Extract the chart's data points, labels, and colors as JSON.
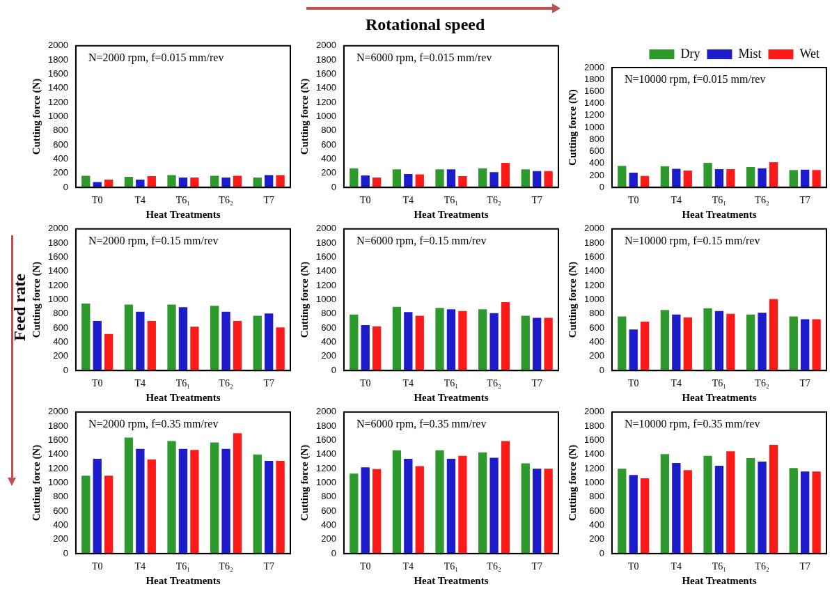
{
  "chart_data": [
    {
      "type": "bar",
      "title": "N=2000 rpm, f=0.015 mm/rev",
      "xlabel": "Heat Treatments",
      "ylabel": "Cutting force (N)",
      "categories": [
        "T0",
        "T4",
        "T6₁",
        "T6₂",
        "T7"
      ],
      "ylim": [
        0,
        2000
      ],
      "yticks": [
        0,
        200,
        400,
        600,
        800,
        1000,
        1200,
        1400,
        1600,
        1800,
        2000
      ],
      "grid": false,
      "series": [
        {
          "color": "#2e9a2e",
          "values": [
            165,
            150,
            175,
            165,
            140
          ]
        },
        {
          "color": "#1c1ccc",
          "values": [
            75,
            110,
            140,
            140,
            175
          ]
        },
        {
          "color": "#ff1a1a",
          "values": [
            110,
            160,
            140,
            165,
            175
          ]
        }
      ]
    },
    {
      "type": "bar",
      "title": "N=6000 rpm, f=0.015 mm/rev",
      "xlabel": "Heat Treatments",
      "ylabel": "Cutting force (N)",
      "categories": [
        "T0",
        "T4",
        "T6₁",
        "T6₂",
        "T7"
      ],
      "ylim": [
        0,
        2000
      ],
      "yticks": [
        0,
        200,
        400,
        600,
        800,
        1000,
        1200,
        1400,
        1600,
        1800,
        2000
      ],
      "grid": false,
      "annotations": [
        "Rotational speed"
      ],
      "series": [
        {
          "color": "#2e9a2e",
          "values": [
            270,
            255,
            255,
            270,
            255
          ]
        },
        {
          "color": "#1c1ccc",
          "values": [
            170,
            190,
            255,
            215,
            230
          ]
        },
        {
          "color": "#ff1a1a",
          "values": [
            140,
            185,
            160,
            345,
            230
          ]
        }
      ]
    },
    {
      "type": "bar",
      "title": "N=10000 rpm, f=0.015 mm/rev",
      "xlabel": "Heat Treatments",
      "ylabel": "Cutting force (N)",
      "categories": [
        "T0",
        "T4",
        "T6₁",
        "T6₂",
        "T7"
      ],
      "ylim": [
        0,
        2000
      ],
      "yticks": [
        0,
        200,
        400,
        600,
        800,
        1000,
        1200,
        1400,
        1600,
        1800,
        2000
      ],
      "grid": false,
      "legend": "top right",
      "series": [
        {
          "name": "Dry",
          "color": "#2e9a2e",
          "values": [
            360,
            355,
            410,
            340,
            290
          ]
        },
        {
          "name": "Mist",
          "color": "#1c1ccc",
          "values": [
            245,
            310,
            305,
            320,
            295
          ]
        },
        {
          "name": "Wet",
          "color": "#ff1a1a",
          "values": [
            190,
            280,
            305,
            420,
            290
          ]
        }
      ]
    },
    {
      "type": "bar",
      "title": "N=2000 rpm, f=0.15 mm/rev",
      "xlabel": "Heat Treatments",
      "ylabel": "Cutting force (N)",
      "categories": [
        "T0",
        "T4",
        "T6₁",
        "T6₂",
        "T7"
      ],
      "ylim": [
        0,
        2000
      ],
      "yticks": [
        0,
        200,
        400,
        600,
        800,
        1000,
        1200,
        1400,
        1600,
        1800,
        2000
      ],
      "grid": false,
      "annotations": [
        "Feed rate"
      ],
      "series": [
        {
          "color": "#2e9a2e",
          "values": [
            945,
            930,
            930,
            915,
            775
          ]
        },
        {
          "color": "#1c1ccc",
          "values": [
            700,
            830,
            895,
            830,
            805
          ]
        },
        {
          "color": "#ff1a1a",
          "values": [
            515,
            700,
            620,
            700,
            610
          ]
        }
      ]
    },
    {
      "type": "bar",
      "title": "N=6000 rpm, f=0.15 mm/rev",
      "xlabel": "Heat Treatments",
      "ylabel": "Cutting force (N)",
      "categories": [
        "T0",
        "T4",
        "T6₁",
        "T6₂",
        "T7"
      ],
      "ylim": [
        0,
        2000
      ],
      "yticks": [
        0,
        200,
        400,
        600,
        800,
        1000,
        1200,
        1400,
        1600,
        1800,
        2000
      ],
      "grid": false,
      "series": [
        {
          "color": "#2e9a2e",
          "values": [
            790,
            900,
            885,
            865,
            775
          ]
        },
        {
          "color": "#1c1ccc",
          "values": [
            640,
            825,
            865,
            810,
            745
          ]
        },
        {
          "color": "#ff1a1a",
          "values": [
            625,
            775,
            840,
            965,
            745
          ]
        }
      ]
    },
    {
      "type": "bar",
      "title": "N=10000 rpm, f=0.15 mm/rev",
      "xlabel": "Heat Treatments",
      "ylabel": "Cutting force (N)",
      "categories": [
        "T0",
        "T4",
        "T6₁",
        "T6₂",
        "T7"
      ],
      "ylim": [
        0,
        2000
      ],
      "yticks": [
        0,
        200,
        400,
        600,
        800,
        1000,
        1200,
        1400,
        1600,
        1800,
        2000
      ],
      "grid": false,
      "series": [
        {
          "color": "#2e9a2e",
          "values": [
            765,
            855,
            880,
            790,
            765
          ]
        },
        {
          "color": "#1c1ccc",
          "values": [
            580,
            790,
            840,
            815,
            725
          ]
        },
        {
          "color": "#ff1a1a",
          "values": [
            690,
            750,
            800,
            1010,
            725
          ]
        }
      ]
    },
    {
      "type": "bar",
      "title": "N=2000 rpm, f=0.35 mm/rev",
      "xlabel": "Heat Treatments",
      "ylabel": "Cutting force (N)",
      "categories": [
        "T0",
        "T4",
        "T6₁",
        "T6₂",
        "T7"
      ],
      "ylim": [
        0,
        2000
      ],
      "yticks": [
        0,
        200,
        400,
        600,
        800,
        1000,
        1200,
        1400,
        1600,
        1800,
        2000
      ],
      "grid": false,
      "series": [
        {
          "color": "#2e9a2e",
          "values": [
            1100,
            1640,
            1590,
            1570,
            1400
          ]
        },
        {
          "color": "#1c1ccc",
          "values": [
            1340,
            1480,
            1480,
            1480,
            1310
          ]
        },
        {
          "color": "#ff1a1a",
          "values": [
            1100,
            1330,
            1465,
            1700,
            1310
          ]
        }
      ]
    },
    {
      "type": "bar",
      "title": "N=6000 rpm, f=0.35 mm/rev",
      "xlabel": "Heat Treatments",
      "ylabel": "Cutting force (N)",
      "categories": [
        "T0",
        "T4",
        "T6₁",
        "T6₂",
        "T7"
      ],
      "ylim": [
        0,
        2000
      ],
      "yticks": [
        0,
        200,
        400,
        600,
        800,
        1000,
        1200,
        1400,
        1600,
        1800,
        2000
      ],
      "grid": false,
      "series": [
        {
          "color": "#2e9a2e",
          "values": [
            1130,
            1460,
            1460,
            1430,
            1275
          ]
        },
        {
          "color": "#1c1ccc",
          "values": [
            1220,
            1340,
            1340,
            1355,
            1200
          ]
        },
        {
          "color": "#ff1a1a",
          "values": [
            1195,
            1235,
            1380,
            1590,
            1200
          ]
        }
      ]
    },
    {
      "type": "bar",
      "title": "N=10000 rpm, f=0.35 mm/rev",
      "xlabel": "Heat Treatments",
      "ylabel": "Cutting force (N)",
      "categories": [
        "T0",
        "T4",
        "T6₁",
        "T6₂",
        "T7"
      ],
      "ylim": [
        0,
        2000
      ],
      "yticks": [
        0,
        200,
        400,
        600,
        800,
        1000,
        1200,
        1400,
        1600,
        1800,
        2000
      ],
      "grid": false,
      "series": [
        {
          "color": "#2e9a2e",
          "values": [
            1200,
            1405,
            1380,
            1350,
            1210
          ]
        },
        {
          "color": "#1c1ccc",
          "values": [
            1110,
            1280,
            1240,
            1300,
            1160
          ]
        },
        {
          "color": "#ff1a1a",
          "values": [
            1065,
            1180,
            1445,
            1535,
            1160
          ]
        }
      ]
    }
  ]
}
